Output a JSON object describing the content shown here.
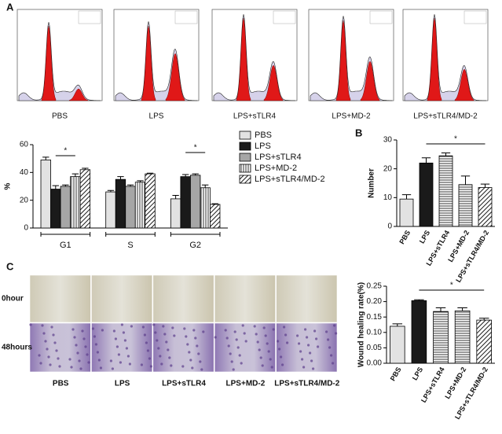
{
  "panels": {
    "a": "A",
    "b": "B",
    "c": "C"
  },
  "histograms": {
    "labels": [
      "PBS",
      "LPS",
      "LPS+sTLR4",
      "LPS+MD-2",
      "LPS+sTLR4/MD-2"
    ]
  },
  "wound_images": {
    "rows": [
      "0hour",
      "48hours"
    ],
    "labels": [
      "PBS",
      "LPS",
      "LPS+sTLR4",
      "LPS+MD-2",
      "LPS+sTLR4/MD-2"
    ]
  },
  "chart_data": [
    {
      "type": "grouped_bar",
      "ylabel": "%",
      "categories": [
        "G1",
        "S",
        "G2"
      ],
      "series": [
        {
          "name": "PBS",
          "color": "#e2e2e2",
          "pattern": "solid",
          "values": [
            49,
            26,
            21
          ],
          "errors": [
            2,
            1,
            2.5
          ]
        },
        {
          "name": "LPS",
          "color": "#1a1a1a",
          "pattern": "solid",
          "values": [
            28,
            35,
            37
          ],
          "errors": [
            2.5,
            2,
            1.5
          ]
        },
        {
          "name": "LPS+sTLR4",
          "color": "#a6a6a6",
          "pattern": "solid",
          "values": [
            30,
            30,
            38
          ],
          "errors": [
            1,
            1,
            1
          ]
        },
        {
          "name": "LPS+MD-2",
          "color": "#ffffff",
          "pattern": "vlines",
          "values": [
            37,
            33,
            29
          ],
          "errors": [
            2,
            1,
            2
          ]
        },
        {
          "name": "LPS+sTLR4/MD-2",
          "color": "#ffffff",
          "pattern": "diag",
          "values": [
            42,
            39,
            17
          ],
          "errors": [
            1,
            0.5,
            0.5
          ]
        }
      ],
      "ylim": [
        0,
        60
      ],
      "yticks": [
        0,
        20,
        40,
        60
      ],
      "annotations": [
        "*",
        "*"
      ]
    },
    {
      "type": "bar",
      "ylabel": "Number",
      "categories": [
        "PBS",
        "LPS",
        "LPS+sTLR4",
        "LPS+MD-2",
        "LPS+sTLR4/MD-2"
      ],
      "values": [
        9.5,
        22,
        24.5,
        14.5,
        13.5
      ],
      "errors": [
        1.5,
        1.8,
        1,
        3,
        1.2
      ],
      "colors": [
        "#e2e2e2",
        "#1a1a1a",
        "#ffffff",
        "#ffffff",
        "#ffffff"
      ],
      "patterns": [
        "solid",
        "solid",
        "hlines",
        "hlines",
        "diag"
      ],
      "ylim": [
        0,
        30
      ],
      "yticks": [
        0,
        10,
        20,
        30
      ],
      "annotations": [
        "*"
      ]
    },
    {
      "type": "bar",
      "ylabel": "Wound healing rate(%)",
      "categories": [
        "PBS",
        "LPS",
        "LPS+sTLR4",
        "LPS+MD-2",
        "LPS+sTLR4/MD-2"
      ],
      "values": [
        0.12,
        0.203,
        0.168,
        0.17,
        0.14
      ],
      "errors": [
        0.008,
        0.003,
        0.012,
        0.01,
        0.006
      ],
      "colors": [
        "#e2e2e2",
        "#1a1a1a",
        "#ffffff",
        "#ffffff",
        "#ffffff"
      ],
      "patterns": [
        "solid",
        "solid",
        "hlines",
        "hlines",
        "diag"
      ],
      "ylim": [
        0,
        0.25
      ],
      "yticks": [
        {
          "value": 0,
          "label": "0.00"
        },
        {
          "value": 0.05,
          "label": "0.05"
        },
        {
          "value": 0.1,
          "label": "0.10"
        },
        {
          "value": 0.15,
          "label": "0.15"
        },
        {
          "value": 0.2,
          "label": "0.20"
        },
        {
          "value": 0.25,
          "label": "0.25"
        }
      ],
      "annotations": [
        "*"
      ]
    }
  ]
}
